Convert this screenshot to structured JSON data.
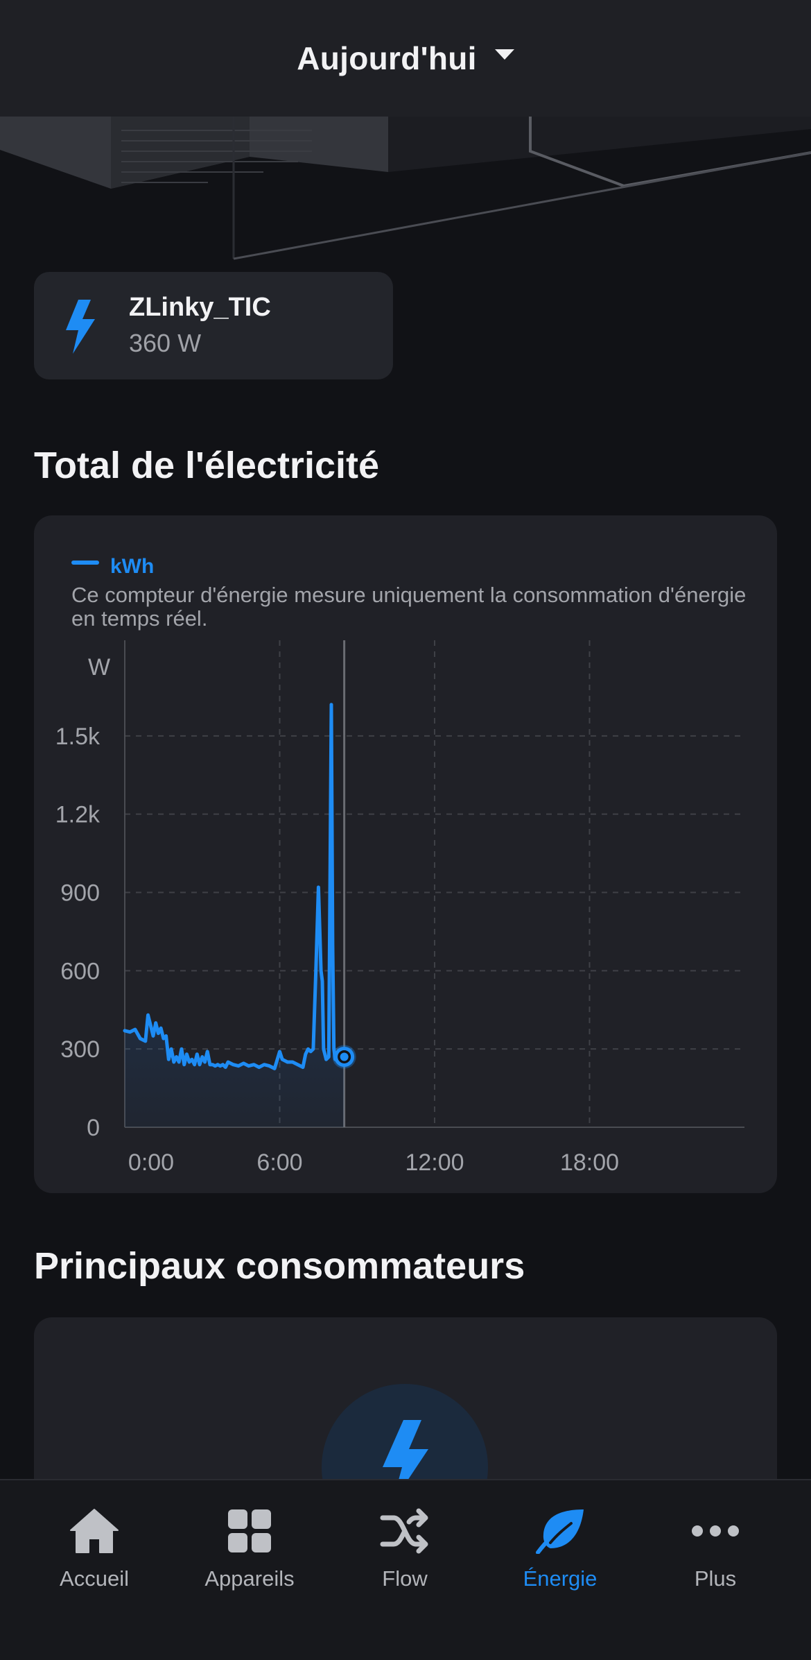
{
  "header": {
    "title": "Aujourd'hui",
    "dropdown_icon": "caret-down-icon"
  },
  "device": {
    "name": "ZLinky_TIC",
    "value": "360 W",
    "icon": "lightning-bolt-icon"
  },
  "electricity_section": {
    "title": "Total de l'électricité"
  },
  "chart_data": {
    "type": "area",
    "legend": [
      {
        "name": "kWh",
        "color": "#1e8cf4"
      }
    ],
    "description": "Ce compteur d'énergie mesure uniquement la consommation d'énergie en temps réel.",
    "ylabel": "W",
    "xlabel": "",
    "yticks": [
      "0",
      "300",
      "600",
      "900",
      "1.2k",
      "1.5k"
    ],
    "ytick_values": [
      0,
      300,
      600,
      900,
      1200,
      1500
    ],
    "xticks": [
      "0:00",
      "6:00",
      "12:00",
      "18:00"
    ],
    "xtick_values": [
      0,
      6,
      12,
      18
    ],
    "xlim": [
      0,
      24
    ],
    "ylim": [
      0,
      1800
    ],
    "grid": true,
    "cursor_hour": 8.5,
    "series": [
      {
        "name": "kWh",
        "x": [
          0,
          0.2,
          0.4,
          0.6,
          0.8,
          0.9,
          1.0,
          1.1,
          1.2,
          1.3,
          1.4,
          1.5,
          1.6,
          1.7,
          1.8,
          1.9,
          2.0,
          2.1,
          2.2,
          2.3,
          2.4,
          2.5,
          2.6,
          2.7,
          2.8,
          2.9,
          3.0,
          3.1,
          3.2,
          3.3,
          3.4,
          3.5,
          3.6,
          3.7,
          3.8,
          3.9,
          4.0,
          4.2,
          4.4,
          4.6,
          4.8,
          5.0,
          5.2,
          5.4,
          5.6,
          5.8,
          6.0,
          6.1,
          6.3,
          6.5,
          6.7,
          6.9,
          7.0,
          7.1,
          7.2,
          7.3,
          7.4,
          7.5,
          7.6,
          7.65,
          7.7,
          7.8,
          7.9,
          8.0,
          8.05,
          8.1,
          8.15,
          8.2,
          8.3,
          8.4,
          8.5
        ],
        "values": [
          370,
          365,
          375,
          340,
          330,
          430,
          390,
          350,
          400,
          360,
          380,
          340,
          350,
          260,
          300,
          250,
          270,
          250,
          300,
          240,
          280,
          250,
          260,
          240,
          280,
          240,
          270,
          250,
          290,
          240,
          240,
          235,
          240,
          235,
          240,
          230,
          250,
          240,
          235,
          245,
          235,
          240,
          230,
          240,
          235,
          225,
          290,
          260,
          250,
          250,
          240,
          230,
          280,
          300,
          290,
          300,
          600,
          920,
          600,
          560,
          300,
          260,
          270,
          1620,
          700,
          300,
          260,
          280,
          270,
          270,
          270
        ]
      }
    ]
  },
  "consumers_section": {
    "title": "Principaux consommateurs",
    "icon": "lightning-bolt-icon"
  },
  "tabbar": {
    "items": [
      {
        "label": "Accueil",
        "icon": "home-icon"
      },
      {
        "label": "Appareils",
        "icon": "grid-icon"
      },
      {
        "label": "Flow",
        "icon": "shuffle-icon"
      },
      {
        "label": "Énergie",
        "icon": "leaf-icon",
        "active": true
      },
      {
        "label": "Plus",
        "icon": "more-dots-icon"
      }
    ]
  }
}
